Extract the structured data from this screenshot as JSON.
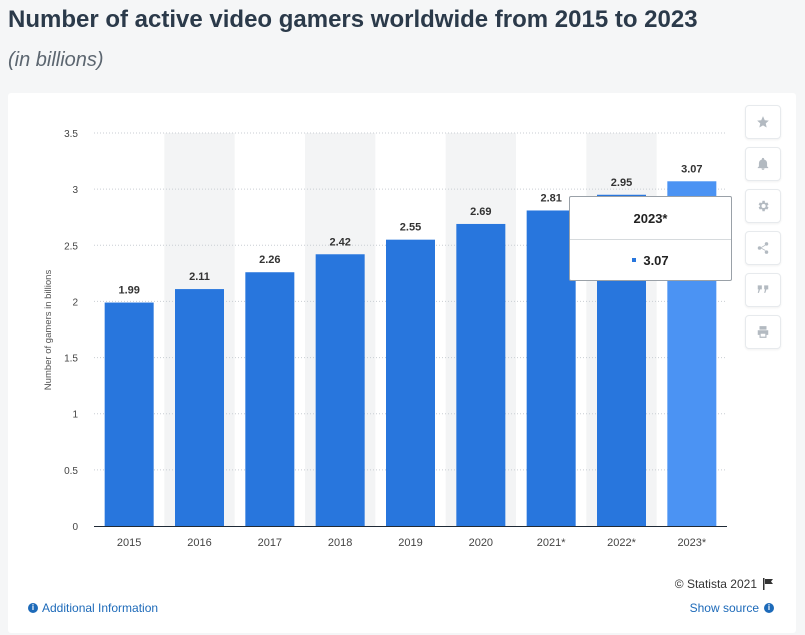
{
  "header": {
    "title": "Number of active video gamers worldwide from 2015 to 2023",
    "subtitle": "(in billions)"
  },
  "chart_data": {
    "type": "bar",
    "categories": [
      "2015",
      "2016",
      "2017",
      "2018",
      "2019",
      "2020",
      "2021*",
      "2022*",
      "2023*"
    ],
    "values": [
      1.99,
      2.11,
      2.26,
      2.42,
      2.55,
      2.69,
      2.81,
      2.95,
      3.07
    ],
    "value_labels": [
      "1.99",
      "2.11",
      "2.26",
      "2.42",
      "2.55",
      "2.69",
      "2.81",
      "2.95",
      "3.07"
    ],
    "title": "Number of active video gamers worldwide from 2015 to 2023",
    "xlabel": "",
    "ylabel": "Number of gamers in billions",
    "ylim": [
      0,
      3.5
    ],
    "yticks": [
      "0",
      "0.5",
      "1",
      "1.5",
      "2",
      "2.5",
      "3",
      "3.5"
    ],
    "grid": true,
    "highlighted_category": "2023*",
    "colors": {
      "bar": "#2876dd",
      "highlight": "#4b93f3",
      "band": "#f3f4f5",
      "grid": "#c9ced3"
    }
  },
  "tooltip": {
    "category": "2023*",
    "value": "3.07"
  },
  "sidebar": {
    "icons": [
      "star-icon",
      "bell-icon",
      "gear-icon",
      "share-icon",
      "quote-icon",
      "print-icon"
    ]
  },
  "footer": {
    "copyright": "© Statista 2021",
    "additional_info": "Additional Information",
    "show_source": "Show source"
  }
}
